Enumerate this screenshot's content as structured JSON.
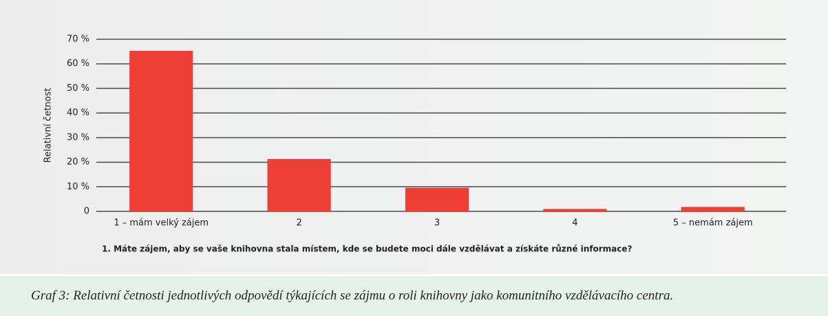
{
  "chart_data": {
    "type": "bar",
    "ylabel": "Relativní četnost",
    "xlabel": "1. Máte zájem, aby se vaše knihovna stala místem, kde se budete moci dále vzdělávat a získáte různé informace?",
    "categories": [
      "1 – mám velký zájem",
      "2",
      "3",
      "4",
      "5 – nemám zájem"
    ],
    "values": [
      65.3,
      21.3,
      9.6,
      1,
      1.8
    ],
    "color": "#ef3e36",
    "ylim": [
      0,
      70
    ],
    "yticks": [
      0,
      {
        "value": 10,
        "label": "10 %"
      },
      {
        "value": 20,
        "label": "20 %"
      },
      {
        "value": 30,
        "label": "30 %"
      },
      {
        "value": 40,
        "label": "40 %"
      },
      {
        "value": 50,
        "label": "50 %"
      },
      {
        "value": 60,
        "label": "60 %"
      },
      {
        "value": 70,
        "label": "70 %"
      }
    ],
    "grid": true
  },
  "caption": "Graf  3: Relativní četnosti jednotlivých odpovědí týkajících se zájmu o roli knihovny jako komunitního vzdělávacího centra."
}
